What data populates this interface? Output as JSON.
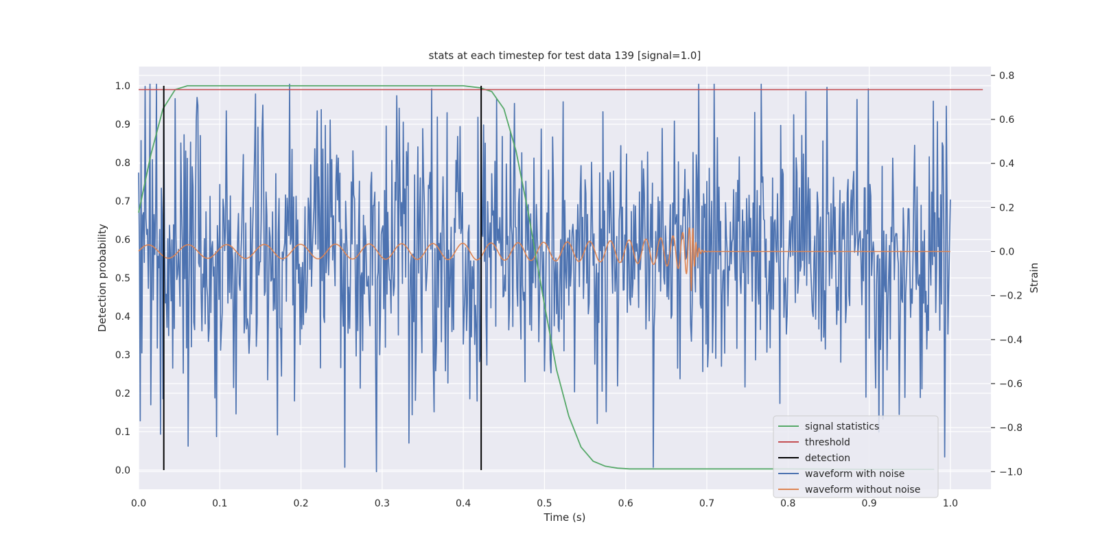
{
  "chart_data": {
    "type": "line",
    "title": "stats at each timestep for test data 139 [signal=1.0]",
    "xlabel": "Time (s)",
    "ylabel": "Detection probability",
    "y2label": "Strain",
    "xlim": [
      0.0,
      1.05
    ],
    "ylim": [
      -0.05,
      1.05
    ],
    "y2lim": [
      -1.08,
      0.84
    ],
    "xticks": [
      "0.0",
      "0.1",
      "0.2",
      "0.3",
      "0.4",
      "0.5",
      "0.6",
      "0.7",
      "0.8",
      "0.9",
      "1.0"
    ],
    "xtick_values": [
      0,
      0.1,
      0.2,
      0.3,
      0.4,
      0.5,
      0.6,
      0.7,
      0.8,
      0.9,
      1.0
    ],
    "yticks": [
      "0.0",
      "0.1",
      "0.2",
      "0.3",
      "0.4",
      "0.5",
      "0.6",
      "0.7",
      "0.8",
      "0.9",
      "1.0"
    ],
    "ytick_values": [
      0,
      0.1,
      0.2,
      0.3,
      0.4,
      0.5,
      0.6,
      0.7,
      0.8,
      0.9,
      1.0
    ],
    "y2ticks": [
      "−1.0",
      "−0.8",
      "−0.6",
      "−0.4",
      "−0.2",
      "0.0",
      "0.2",
      "0.4",
      "0.6",
      "0.8"
    ],
    "y2tick_values": [
      -1.0,
      -0.8,
      -0.6,
      -0.4,
      -0.2,
      0.0,
      0.2,
      0.4,
      0.6,
      0.8
    ],
    "grid": true,
    "legend_position": "lower-right",
    "colors": {
      "background": "#eaeaf2",
      "grid": "#ffffff",
      "signal_statistics": "#55a868",
      "threshold": "#c44e52",
      "detection": "#000000",
      "waveform_with_noise": "#4c72b0",
      "waveform_without_noise": "#dd8452"
    },
    "series": [
      {
        "name": "signal statistics",
        "axis": "left",
        "x": [
          0.0,
          0.015,
          0.03,
          0.045,
          0.06,
          0.08,
          0.1,
          0.2,
          0.3,
          0.4,
          0.42,
          0.435,
          0.45,
          0.465,
          0.48,
          0.5,
          0.515,
          0.53,
          0.545,
          0.56,
          0.575,
          0.59,
          0.605,
          0.62,
          0.65,
          0.7,
          0.8,
          0.9,
          0.98
        ],
        "y": [
          0.67,
          0.82,
          0.94,
          0.99,
          1.0,
          1.0,
          1.0,
          1.0,
          1.0,
          1.0,
          0.995,
          0.985,
          0.94,
          0.83,
          0.67,
          0.43,
          0.26,
          0.14,
          0.06,
          0.023,
          0.01,
          0.005,
          0.003,
          0.003,
          0.003,
          0.003,
          0.003,
          0.002,
          0.002
        ]
      },
      {
        "name": "threshold",
        "axis": "left",
        "x": [
          0.0,
          1.04
        ],
        "y": [
          0.99,
          0.99
        ]
      },
      {
        "name": "detection",
        "axis": "left",
        "type": "vlines",
        "x": [
          0.031,
          0.422
        ],
        "ymin": 0.0,
        "ymax": 1.0
      },
      {
        "name": "waveform with noise",
        "axis": "right",
        "x_start": 0.0,
        "x_end": 1.0,
        "description_values": {
          "noise_amplitude": 0.3,
          "notable_points": [
            [
              0.008,
              0.75
            ],
            [
              0.027,
              -0.83
            ],
            [
              0.072,
              0.7
            ],
            [
              0.293,
              -1.0
            ],
            [
              0.333,
              -0.87
            ],
            [
              0.418,
              0.61
            ],
            [
              0.79,
              -0.69
            ],
            [
              0.912,
              -0.82
            ],
            [
              0.937,
              -0.74
            ],
            [
              0.995,
              0.66
            ]
          ]
        }
      },
      {
        "name": "waveform without noise",
        "axis": "right",
        "x_start": 0.0,
        "x_end": 1.0,
        "description_values": {
          "base_amplitude": 0.03,
          "peak_amplitude": 0.22,
          "merger_time": 0.68,
          "initial_frequency_hz": 20
        }
      }
    ]
  }
}
